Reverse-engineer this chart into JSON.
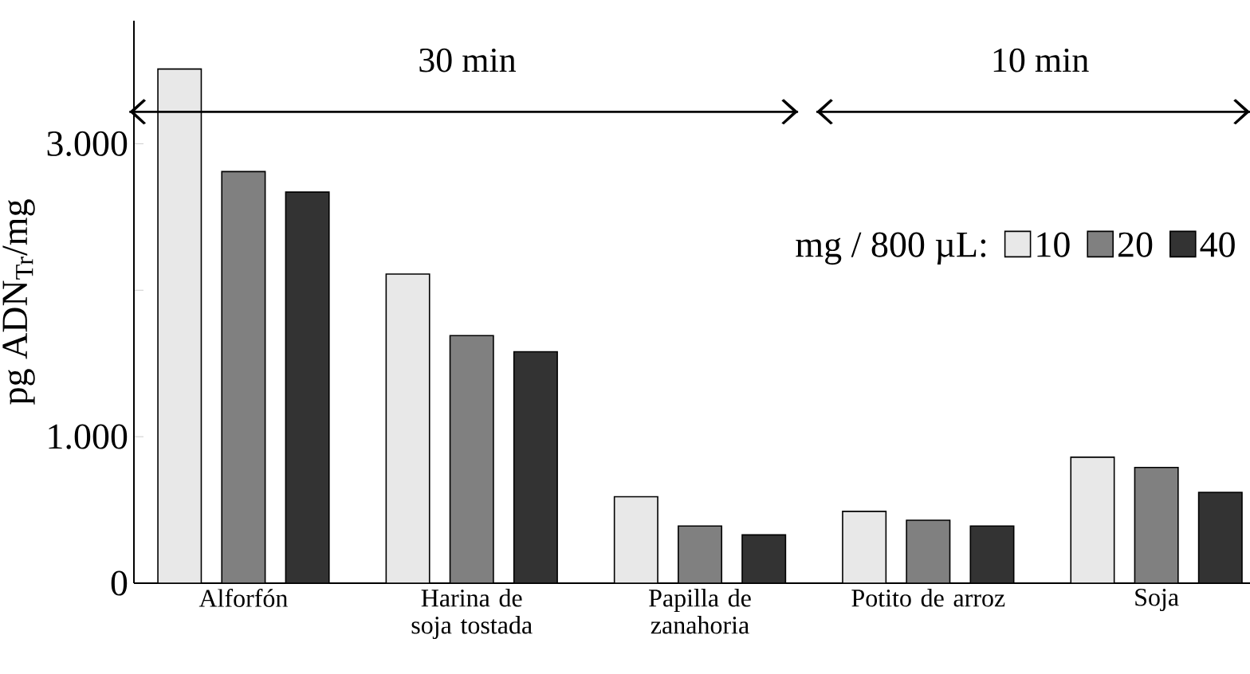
{
  "chart_data": {
    "type": "bar",
    "ylabel": "pg ADN$_{Tr}$/mg",
    "legend_title": "mg / 800 µL:",
    "legend": "top right",
    "categories": [
      "Alforfón",
      "Harina de soja tostada",
      "Papilla de zanahoria",
      "Potito de arroz",
      "Soja"
    ],
    "series": [
      {
        "name": "10",
        "color": "#e8e8e8",
        "values": [
          3510,
          2110,
          590,
          490,
          860
        ]
      },
      {
        "name": "20",
        "color": "#808080",
        "values": [
          2810,
          1690,
          390,
          430,
          790
        ]
      },
      {
        "name": "40",
        "color": "#333333",
        "values": [
          2670,
          1580,
          330,
          390,
          620
        ]
      }
    ],
    "ylim": [
      0,
      3840
    ],
    "yticks": [
      0,
      {
        "value": 1000,
        "label": "1.000"
      },
      {
        "value": 2000,
        "label": null
      },
      {
        "value": 3000,
        "label": "3.000"
      }
    ],
    "annotations": [
      "30 min",
      "10 min"
    ]
  }
}
